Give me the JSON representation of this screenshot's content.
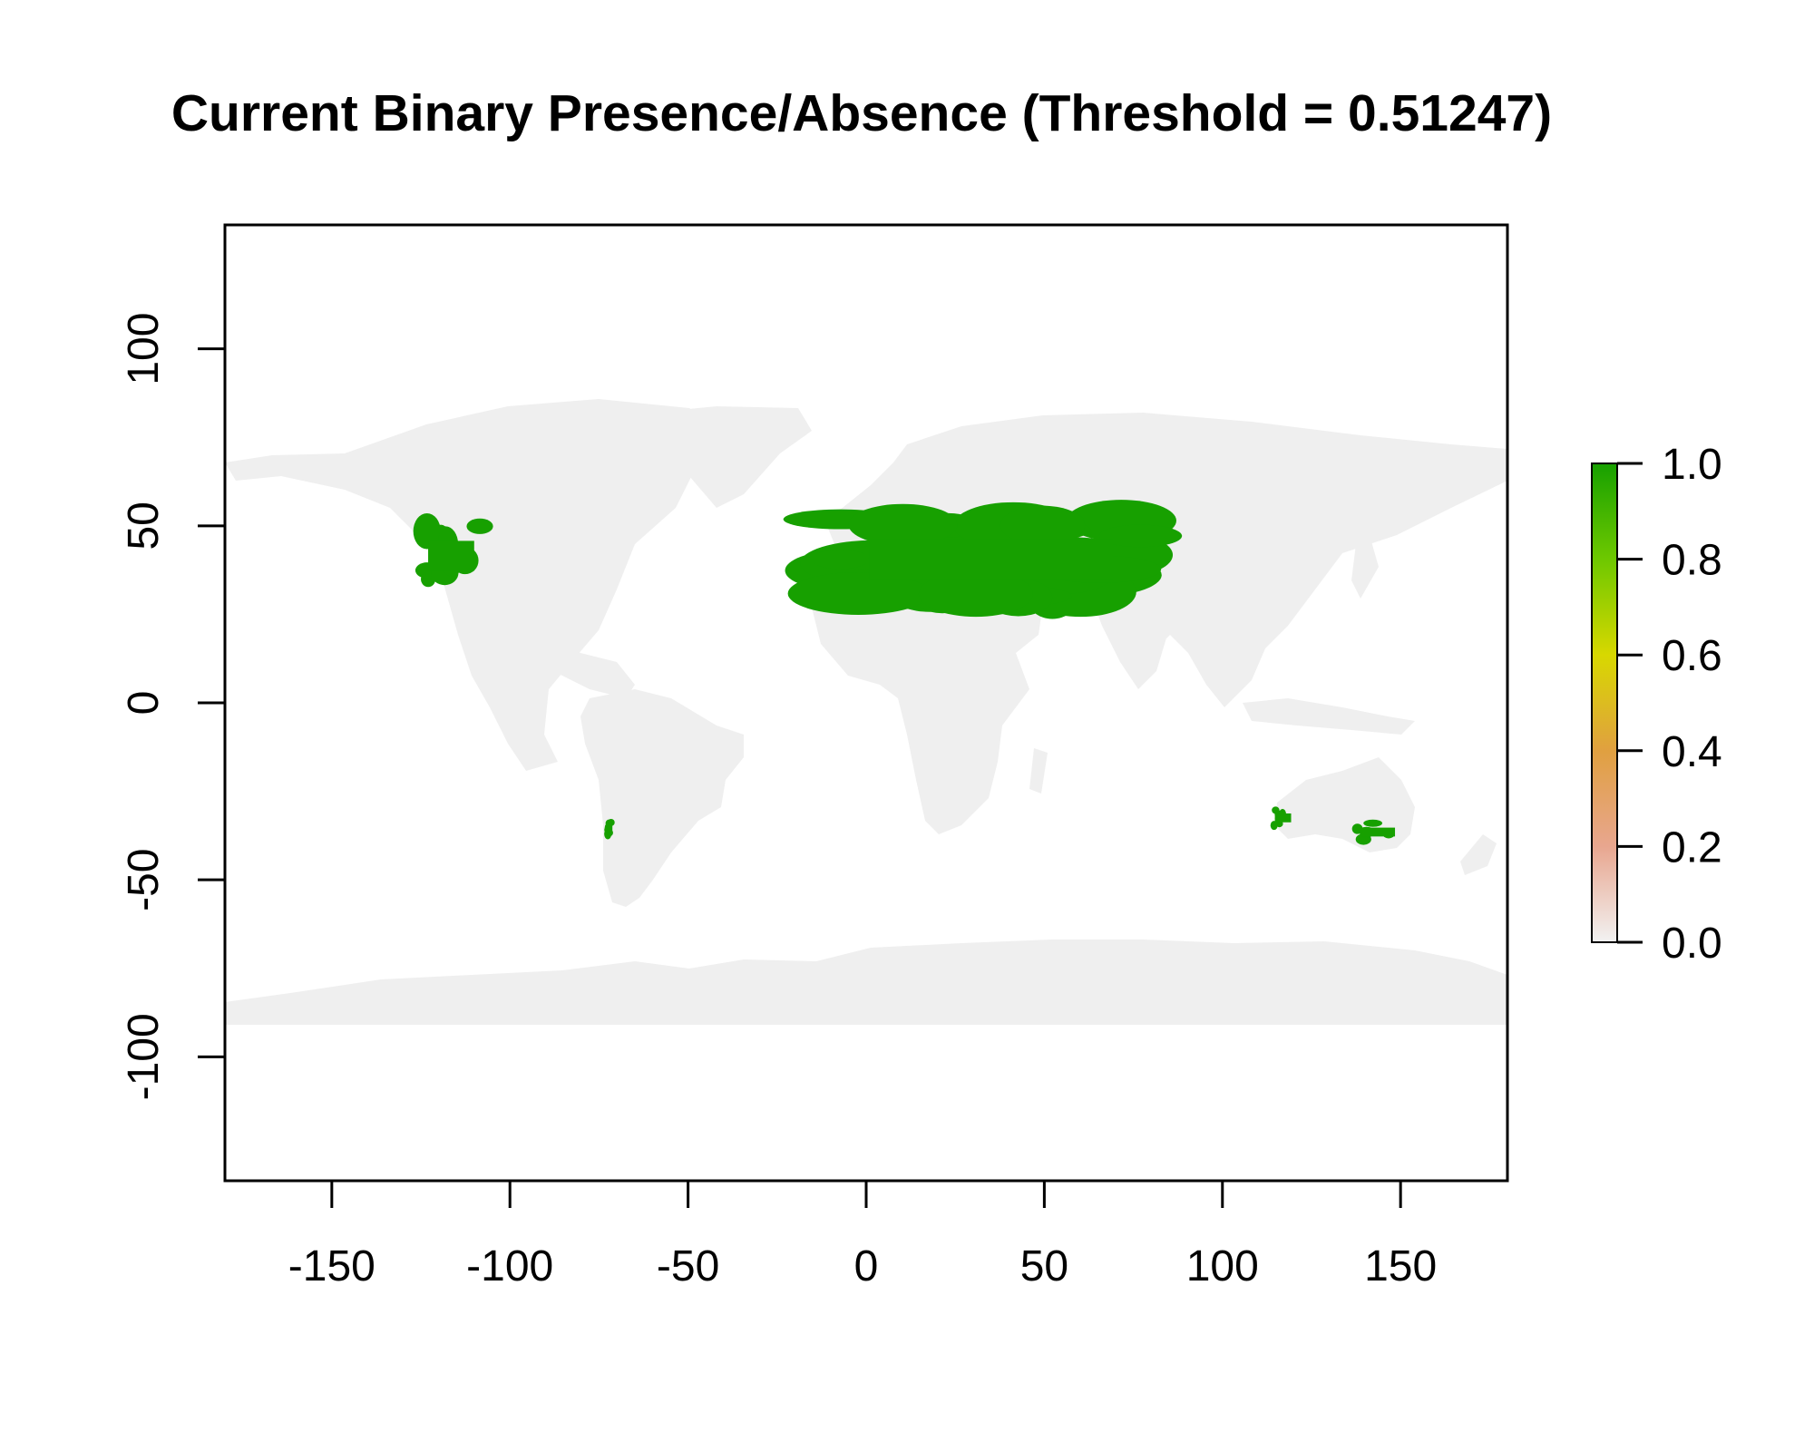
{
  "title": "Current Binary Presence/Absence (Threshold = 0.51247)",
  "x_axis": {
    "range": [
      -180,
      180
    ],
    "ticks": [
      -150,
      -100,
      -50,
      0,
      50,
      100,
      150
    ]
  },
  "y_axis": {
    "range": [
      -135,
      135
    ],
    "ticks": [
      100,
      50,
      0,
      -50,
      -100
    ]
  },
  "colors": {
    "land_absent": "#efefef",
    "presence": "#17a000",
    "scale_gradient": [
      "#f2f2f2",
      "#e8a68f",
      "#e0a040",
      "#d8d800",
      "#6ec800",
      "#17a000"
    ]
  },
  "legend": {
    "range": [
      0,
      1
    ],
    "labels": [
      "1.0",
      "0.8",
      "0.6",
      "0.4",
      "0.2",
      "0.0"
    ]
  },
  "chart_data": {
    "type": "heatmap",
    "title": "Current Binary Presence/Absence (Threshold = 0.51247)",
    "xlim": [
      -180,
      180
    ],
    "ylim": [
      -135,
      135
    ],
    "value_range": [
      0,
      1
    ],
    "presence_regions": [
      {
        "region": "Western North America",
        "lon": [
          -125,
          -108
        ],
        "lat": [
          33,
          50
        ]
      },
      {
        "region": "Mediterranean to Central Asia",
        "lon": [
          -10,
          80
        ],
        "lat": [
          29,
          52
        ]
      },
      {
        "region": "Central Chile",
        "lon": [
          -73,
          -71
        ],
        "lat": [
          -38,
          -33
        ]
      },
      {
        "region": "Southwest Australia",
        "lon": [
          114,
          120
        ],
        "lat": [
          -35,
          -30
        ]
      },
      {
        "region": "Southeast Australia",
        "lon": [
          137,
          150
        ],
        "lat": [
          -39,
          -34
        ]
      }
    ]
  }
}
